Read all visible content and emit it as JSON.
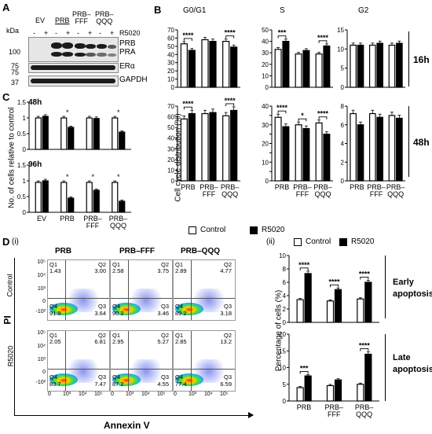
{
  "panels": {
    "A": "A",
    "B": "B",
    "C": "C",
    "D": "D",
    "Di": "(i)",
    "Dii": "(ii)"
  },
  "panel_a": {
    "kda_label": "kDa",
    "groups": [
      "EV",
      "PRB",
      "PRB–\nFFF",
      "PRB–\nQQQ"
    ],
    "treat_marks": [
      "-",
      "+",
      "-",
      "+",
      "-",
      "+",
      "-",
      "+"
    ],
    "r5020_label": "R5020",
    "mw_markers": [
      "100",
      "75",
      "75",
      "37"
    ],
    "band_labels": [
      "PRB",
      "PRA",
      "ERα",
      "GAPDH"
    ]
  },
  "panel_b": {
    "phase_titles": [
      "G0/G1",
      "S",
      "G2"
    ],
    "ylabel": "Cell cycle distribution (%)",
    "row_labels": [
      "16h",
      "48h"
    ],
    "xcats": [
      "PRB",
      "PRB–\nFFF",
      "PRB–\nQQQ"
    ],
    "legend": [
      "Control",
      "R5020"
    ]
  },
  "panel_c": {
    "ylabel": "No. of cells relative to control",
    "sub_labels": [
      "48h",
      "96h"
    ],
    "xcats": [
      "EV",
      "PRB",
      "PRB–\nFFF",
      "PRB–\nQQQ"
    ]
  },
  "panel_d": {
    "col_titles": [
      "PRB",
      "PRB–FFF",
      "PRB–QQQ"
    ],
    "row_titles": [
      "Control",
      "R5020"
    ],
    "y_axis_label": "PI",
    "x_axis_label": "Annexin V",
    "y_ticks": [
      "10⁵",
      "10⁴",
      "10³",
      "0",
      "-10²"
    ],
    "x_ticks": [
      "0",
      "10³",
      "10⁴",
      "10⁵"
    ],
    "quadrant_names": [
      "Q1",
      "Q2",
      "Q3",
      "Q4"
    ],
    "quadrants": [
      [
        [
          "1.43",
          "3.00",
          "3.64",
          "91.9"
        ],
        [
          "2.58",
          "3.75",
          "3.46",
          "90.2"
        ],
        [
          "2.89",
          "4.77",
          "3.18",
          "89.2"
        ]
      ],
      [
        [
          "2.05",
          "6.81",
          "7.47",
          "83.7"
        ],
        [
          "2.95",
          "5.27",
          "4.55",
          "87.2"
        ],
        [
          "2.85",
          "13.2",
          "6.59",
          "77.4"
        ]
      ]
    ],
    "pct_ylabel": "Percentage of cells (%)",
    "legend": [
      "Control",
      "R5020"
    ],
    "row_labels": [
      "Early\napoptosis",
      "Late\napoptosis"
    ],
    "xcats": [
      "PRB",
      "PRB–\nFFF",
      "PRB–\nQQQ"
    ]
  },
  "chart_data": [
    {
      "type": "bar",
      "title": "G0/G1",
      "row": "16h",
      "categories": [
        "PRB",
        "PRB–FFF",
        "PRB–QQQ"
      ],
      "series": [
        {
          "name": "Control",
          "values": [
            53,
            58,
            56
          ]
        },
        {
          "name": "R5020",
          "values": [
            45,
            56,
            49
          ]
        }
      ],
      "ylim": [
        0,
        70
      ],
      "yticks": [
        0,
        10,
        20,
        30,
        40,
        50,
        60,
        70
      ],
      "significance": [
        "****",
        "",
        "****"
      ]
    },
    {
      "type": "bar",
      "title": "S",
      "row": "16h",
      "categories": [
        "PRB",
        "PRB–FFF",
        "PRB–QQQ"
      ],
      "series": [
        {
          "name": "Control",
          "values": [
            33,
            29,
            29
          ]
        },
        {
          "name": "R5020",
          "values": [
            40,
            32,
            36
          ]
        }
      ],
      "ylim": [
        0,
        50
      ],
      "yticks": [
        0,
        10,
        20,
        30,
        40,
        50
      ],
      "significance": [
        "***",
        "",
        "****"
      ]
    },
    {
      "type": "bar",
      "title": "G2",
      "row": "16h",
      "categories": [
        "PRB",
        "PRB–FFF",
        "PRB–QQQ"
      ],
      "series": [
        {
          "name": "Control",
          "values": [
            11,
            11,
            11
          ]
        },
        {
          "name": "R5020",
          "values": [
            11,
            11.5,
            11.5
          ]
        }
      ],
      "ylim": [
        0,
        15
      ],
      "yticks": [
        0,
        5,
        10,
        15
      ],
      "significance": [
        "",
        "",
        ""
      ]
    },
    {
      "type": "bar",
      "title": "G0/G1",
      "row": "48h",
      "categories": [
        "PRB",
        "PRB–FFF",
        "PRB–QQQ"
      ],
      "series": [
        {
          "name": "Control",
          "values": [
            58,
            63,
            61
          ]
        },
        {
          "name": "R5020",
          "values": [
            63,
            64,
            66
          ]
        }
      ],
      "ylim": [
        0,
        70
      ],
      "yticks": [
        0,
        10,
        20,
        30,
        40,
        50,
        60,
        70
      ],
      "significance": [
        "****",
        "",
        "****"
      ]
    },
    {
      "type": "bar",
      "title": "S",
      "row": "48h",
      "categories": [
        "PRB",
        "PRB–FFF",
        "PRB–QQQ"
      ],
      "series": [
        {
          "name": "Control",
          "values": [
            34,
            30,
            31
          ]
        },
        {
          "name": "R5020",
          "values": [
            29,
            28,
            25
          ]
        }
      ],
      "ylim": [
        0,
        40
      ],
      "yticks": [
        0,
        5,
        10,
        15,
        20,
        25,
        30,
        35,
        40
      ],
      "significance": [
        "****",
        "*",
        "****"
      ]
    },
    {
      "type": "bar",
      "title": "G2",
      "row": "48h",
      "categories": [
        "PRB",
        "PRB–FFF",
        "PRB–QQQ"
      ],
      "series": [
        {
          "name": "Control",
          "values": [
            7.2,
            7.2,
            7
          ]
        },
        {
          "name": "R5020",
          "values": [
            6,
            6.8,
            6.7
          ]
        }
      ],
      "ylim": [
        0,
        8
      ],
      "yticks": [
        0,
        2,
        4,
        6,
        8
      ],
      "significance": [
        "",
        "",
        ""
      ]
    },
    {
      "type": "bar",
      "title": "",
      "row": "48h",
      "categories": [
        "EV",
        "PRB",
        "PRB–FFF",
        "PRB–QQQ"
      ],
      "series": [
        {
          "name": "Control",
          "values": [
            1.0,
            1.0,
            1.0,
            1.0
          ]
        },
        {
          "name": "R5020",
          "values": [
            1.05,
            0.7,
            0.98,
            0.55
          ]
        }
      ],
      "ylim": [
        0,
        1.5
      ],
      "yticks": [
        0,
        0.5,
        1,
        1.5
      ],
      "significance": [
        "",
        "*",
        "",
        "*"
      ]
    },
    {
      "type": "bar",
      "title": "",
      "row": "96h",
      "categories": [
        "EV",
        "PRB",
        "PRB–FFF",
        "PRB–QQQ"
      ],
      "series": [
        {
          "name": "Control",
          "values": [
            0.95,
            0.95,
            0.95,
            0.95
          ]
        },
        {
          "name": "R5020",
          "values": [
            1.0,
            0.45,
            0.7,
            0.35
          ]
        }
      ],
      "ylim": [
        0,
        1.5
      ],
      "yticks": [
        0,
        0.5,
        1,
        1.5
      ],
      "significance": [
        "",
        "*",
        "*",
        "*"
      ]
    },
    {
      "type": "bar",
      "title": "",
      "row": "Early apoptosis",
      "categories": [
        "PRB",
        "PRB–FFF",
        "PRB–QQQ"
      ],
      "series": [
        {
          "name": "Control",
          "values": [
            3.4,
            3.2,
            3.5
          ]
        },
        {
          "name": "R5020",
          "values": [
            7.3,
            4.9,
            6.0
          ]
        }
      ],
      "ylim": [
        0,
        10
      ],
      "yticks": [
        0,
        2,
        4,
        6,
        8,
        10
      ],
      "significance": [
        "****",
        "****",
        "****"
      ]
    },
    {
      "type": "bar",
      "title": "",
      "row": "Late apoptosis",
      "categories": [
        "PRB",
        "PRB–FFF",
        "PRB–QQQ"
      ],
      "series": [
        {
          "name": "Control",
          "values": [
            4.0,
            4.6,
            5.0
          ]
        },
        {
          "name": "R5020",
          "values": [
            7.5,
            6.3,
            14.0
          ]
        }
      ],
      "ylim": [
        0,
        20
      ],
      "yticks": [
        0,
        5,
        10,
        15,
        20
      ],
      "significance": [
        "***",
        "",
        "****"
      ]
    }
  ]
}
